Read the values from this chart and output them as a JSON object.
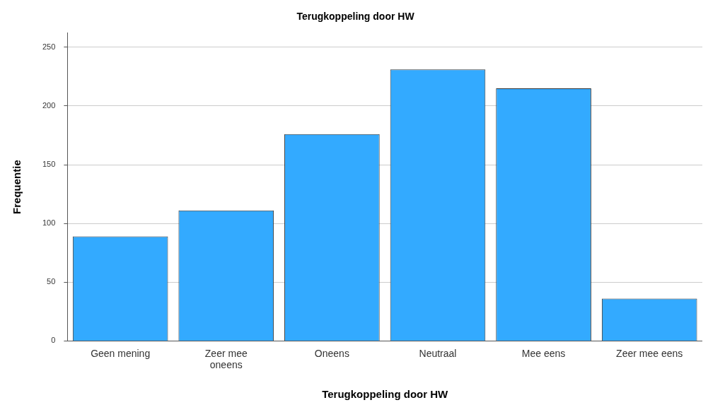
{
  "chart_data": {
    "type": "bar",
    "title": "Terugkoppeling door HW",
    "xlabel": "Terugkoppeling door HW",
    "ylabel": "Frequentie",
    "categories": [
      "Geen mening",
      "Zeer mee oneens",
      "Oneens",
      "Neutraal",
      "Mee eens",
      "Zeer mee eens"
    ],
    "values": [
      89,
      111,
      176,
      231,
      215,
      36
    ],
    "color": "#33aaff",
    "ylim": [
      0,
      262
    ],
    "yticks": [
      0,
      50,
      100,
      150,
      200,
      250
    ],
    "grid": "y",
    "legend": false
  }
}
